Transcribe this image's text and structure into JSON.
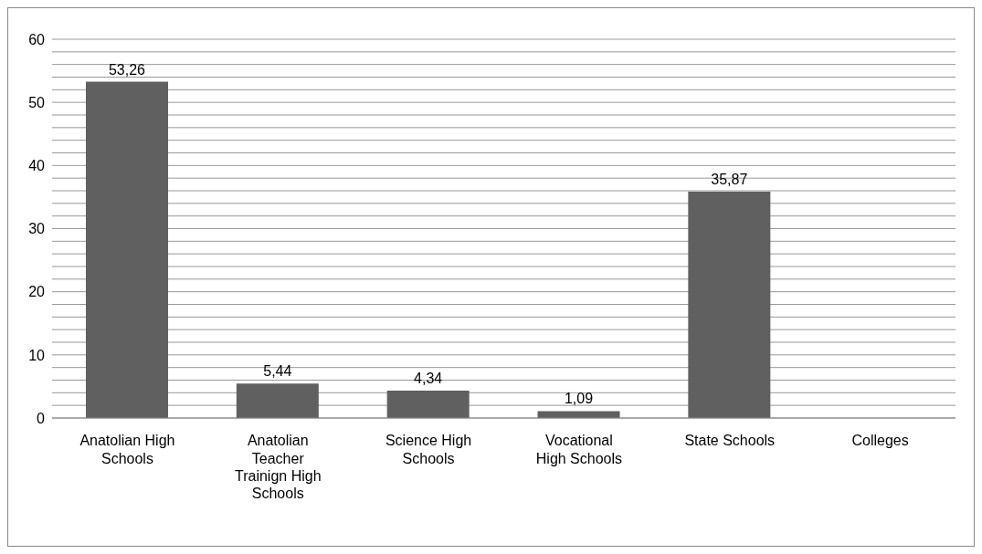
{
  "chart_data": {
    "type": "bar",
    "categories": [
      "Anatolian High Schools",
      "Anatolian Teacher Trainign High Schools",
      "Science High Schools",
      "Vocational High Schools",
      "State Schools",
      "Colleges"
    ],
    "values": [
      53.26,
      5.44,
      4.34,
      1.09,
      35.87,
      0
    ],
    "value_labels": [
      "53,26",
      "5,44",
      "4,34",
      "1,09",
      "35,87",
      null
    ],
    "color": "#606060",
    "ylim": [
      0,
      60
    ],
    "yticks": [
      0,
      {
        "value": 2,
        "label": null
      },
      {
        "value": 4,
        "label": null
      },
      {
        "value": 6,
        "label": null
      },
      {
        "value": 8,
        "label": null
      },
      10,
      {
        "value": 12,
        "label": null
      },
      {
        "value": 14,
        "label": null
      },
      {
        "value": 16,
        "label": null
      },
      {
        "value": 18,
        "label": null
      },
      20,
      {
        "value": 22,
        "label": null
      },
      {
        "value": 24,
        "label": null
      },
      {
        "value": 26,
        "label": null
      },
      {
        "value": 28,
        "label": null
      },
      30,
      {
        "value": 32,
        "label": null
      },
      {
        "value": 34,
        "label": null
      },
      {
        "value": 36,
        "label": null
      },
      {
        "value": 38,
        "label": null
      },
      40,
      {
        "value": 42,
        "label": null
      },
      {
        "value": 44,
        "label": null
      },
      {
        "value": 46,
        "label": null
      },
      {
        "value": 48,
        "label": null
      },
      50,
      {
        "value": 52,
        "label": null
      },
      {
        "value": 54,
        "label": null
      },
      {
        "value": 56,
        "label": null
      },
      {
        "value": 58,
        "label": null
      },
      60
    ],
    "grid": "y"
  }
}
